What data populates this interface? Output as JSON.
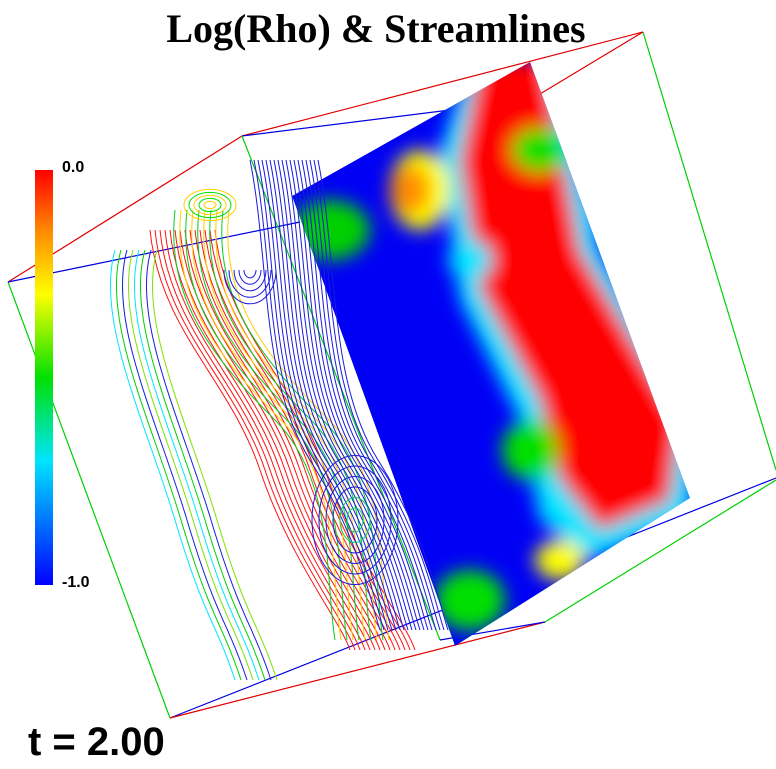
{
  "title": "Log(Rho)  & Streamlines",
  "colorbar": {
    "max_label": "0.0",
    "min_label": "-1.0"
  },
  "time_label": "t =  2.00"
}
